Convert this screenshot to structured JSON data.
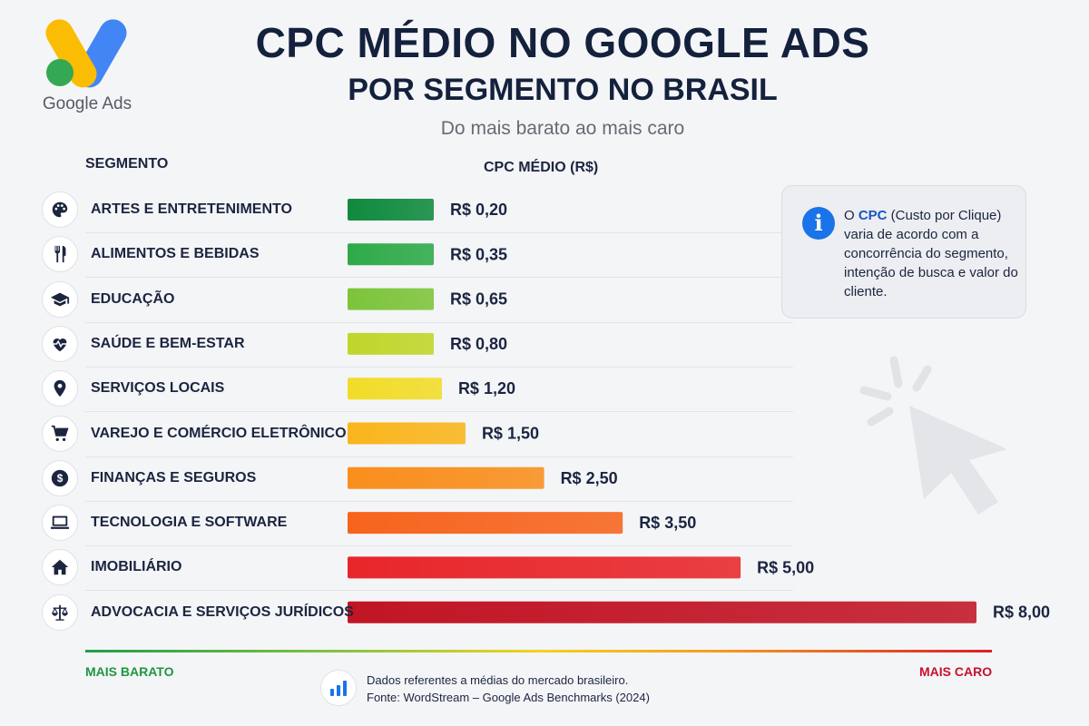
{
  "logo": {
    "text": "Google Ads",
    "icon": "google-ads-logo-icon"
  },
  "header": {
    "title": "CPC MÉDIO NO GOOGLE ADS",
    "subtitle": "POR SEGMENTO NO BRASIL",
    "tagline": "Do mais barato ao mais caro"
  },
  "columns": {
    "segment": "SEGMENTO",
    "cpc": "CPC MÉDIO (R$)"
  },
  "chart_data": {
    "type": "bar",
    "orientation": "horizontal",
    "title": "CPC MÉDIO NO GOOGLE ADS",
    "subtitle": "POR SEGMENTO NO BRASIL",
    "xlabel": "CPC MÉDIO (R$)",
    "ylabel": "SEGMENTO",
    "xlim": [
      0,
      8
    ],
    "grid": false,
    "categories": [
      "ARTES E ENTRETENIMENTO",
      "ALIMENTOS E BEBIDAS",
      "EDUCAÇÃO",
      "SAÚDE E BEM-ESTAR",
      "SERVIÇOS LOCAIS",
      "VAREJO E COMÉRCIO ELETRÔNICO",
      "FINANÇAS E SEGUROS",
      "TECNOLOGIA E SOFTWARE",
      "IMOBILIÁRIO",
      "ADVOCACIA E SERVIÇOS JURÍDICOS"
    ],
    "values": [
      0.2,
      0.35,
      0.65,
      0.8,
      1.2,
      1.5,
      2.5,
      3.5,
      5.0,
      8.0
    ],
    "value_labels": [
      "R$ 0,20",
      "R$ 0,35",
      "R$ 0,65",
      "R$ 0,80",
      "R$ 1,20",
      "R$ 1,50",
      "R$ 2,50",
      "R$ 3,50",
      "R$ 5,00",
      "R$ 8,00"
    ],
    "colors": [
      "#0f8a3e",
      "#2eaa48",
      "#7cc43a",
      "#bfd62a",
      "#f2dc28",
      "#f9b51c",
      "#f98e1c",
      "#f7641d",
      "#e8262a",
      "#c11525"
    ],
    "icons": [
      "palette-icon",
      "fork-knife-icon",
      "graduation-cap-icon",
      "heart-pulse-icon",
      "location-pin-icon",
      "shopping-cart-icon",
      "dollar-coin-icon",
      "laptop-icon",
      "house-icon",
      "scales-icon"
    ]
  },
  "info": {
    "prefix": "O ",
    "highlight": "CPC",
    "text": " (Custo por Clique) varia de acordo com a concorrência do segmento, intenção de busca e valor do cliente.",
    "icon": "info-icon"
  },
  "scale": {
    "low": "MAIS BARATO",
    "high": "MAIS CARO"
  },
  "source": {
    "line1": "Dados referentes a médias do mercado brasileiro.",
    "line2": "Fonte: WordStream – Google Ads Benchmarks (2024)",
    "icon": "bar-chart-icon"
  }
}
